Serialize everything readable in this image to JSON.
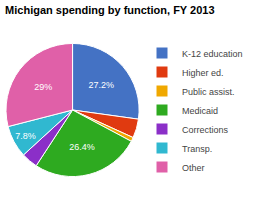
{
  "chart_data": {
    "type": "pie",
    "title": "Michigan spending by function, FY 2013",
    "categories": [
      "K-12 education",
      "Higher ed.",
      "Public assist.",
      "Medicaid",
      "Corrections",
      "Transp.",
      "Other"
    ],
    "values": [
      27.2,
      4.6,
      1.0,
      26.4,
      4.0,
      7.8,
      29.0
    ],
    "value_labels": [
      "27.2%",
      null,
      null,
      "26.4%",
      null,
      "7.8%",
      "29%"
    ],
    "colors": [
      "#4472C4",
      "#E03A10",
      "#F0A800",
      "#2EAA20",
      "#8B2FC8",
      "#30B8D0",
      "#E060A8"
    ],
    "data_labels": true,
    "legend": "right"
  }
}
